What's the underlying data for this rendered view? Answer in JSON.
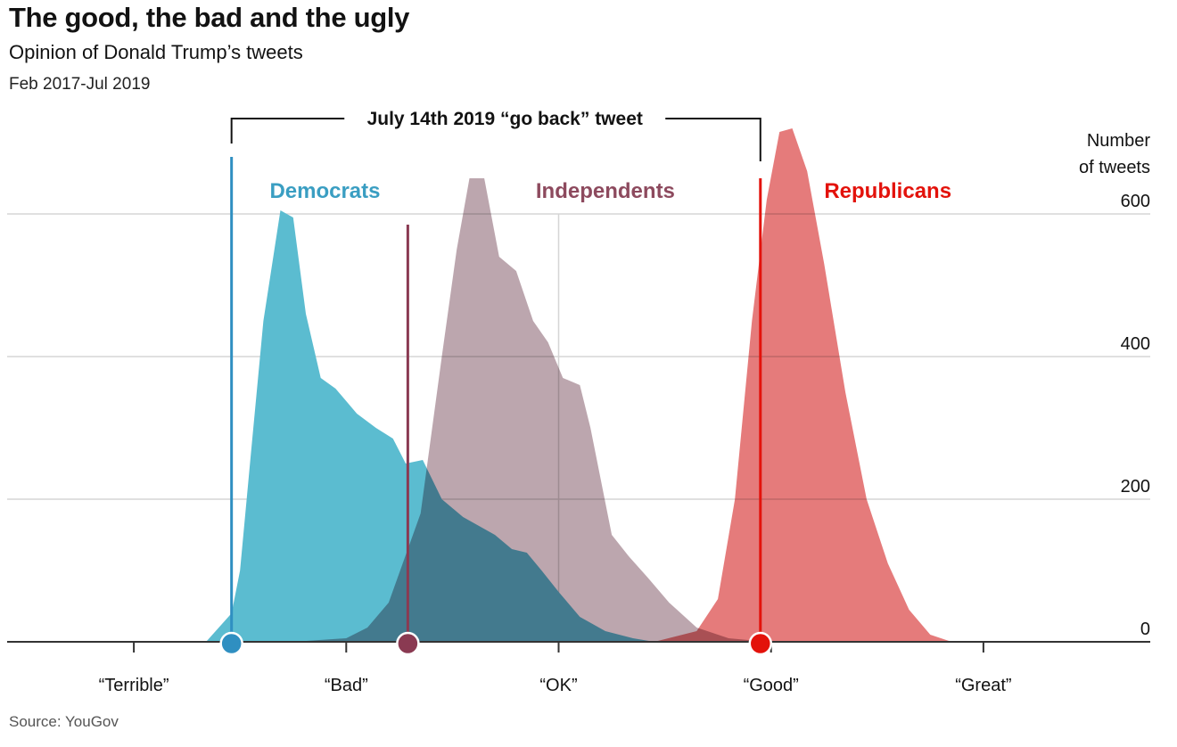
{
  "header": {
    "title": "The good, the bad and the ugly",
    "subtitle": "Opinion of Donald Trump’s tweets",
    "period": "Feb 2017-Jul 2019"
  },
  "source": "Source: YouGov",
  "chart_data": {
    "type": "area",
    "title": "The good, the bad and the ugly",
    "subtitle": "Opinion of Donald Trump’s tweets",
    "ylabel_lines": [
      "Number",
      "of tweets"
    ],
    "ylim": [
      0,
      750
    ],
    "yticks": [
      0,
      200,
      400,
      600
    ],
    "xlim": [
      0,
      5
    ],
    "x_categories": [
      {
        "label": "“Terrible”",
        "x": 0.5
      },
      {
        "label": "“Bad”",
        "x": 1.5
      },
      {
        "label": "“OK”",
        "x": 2.5
      },
      {
        "label": "“Good”",
        "x": 3.5
      },
      {
        "label": "“Great”",
        "x": 4.5
      }
    ],
    "grid": true,
    "annotation": {
      "label": "July 14th 2019 “go back” tweet",
      "from_series": "Democrats",
      "to_series": "Republicans"
    },
    "series": [
      {
        "name": "Democrats",
        "color": "#5bbcd0",
        "label_color": "#3a9ec2",
        "marker_color": "#2f8fc1",
        "go_back_tweet_x": 0.96,
        "go_back_tweet_y": 680,
        "x": [
          0.84,
          0.96,
          1.0,
          1.05,
          1.11,
          1.19,
          1.25,
          1.31,
          1.38,
          1.45,
          1.55,
          1.64,
          1.72,
          1.78,
          1.86,
          1.95,
          2.05,
          2.2,
          2.28,
          2.35,
          2.42,
          2.5,
          2.6,
          2.72,
          2.85,
          2.95
        ],
        "y": [
          0,
          40,
          100,
          260,
          450,
          605,
          595,
          460,
          370,
          355,
          320,
          300,
          285,
          250,
          255,
          200,
          175,
          150,
          130,
          125,
          100,
          70,
          35,
          15,
          5,
          0
        ]
      },
      {
        "name": "Independents",
        "color": "#b59ca5",
        "label_color": "#8d4a5e",
        "marker_color": "#8a3a52",
        "go_back_tweet_x": 1.79,
        "go_back_tweet_y": 585,
        "x": [
          1.25,
          1.5,
          1.6,
          1.7,
          1.85,
          1.95,
          2.02,
          2.08,
          2.15,
          2.22,
          2.3,
          2.38,
          2.45,
          2.52,
          2.6,
          2.65,
          2.75,
          2.83,
          2.92,
          3.02,
          3.15,
          3.3,
          3.45,
          3.6
        ],
        "y": [
          0,
          5,
          20,
          55,
          180,
          400,
          550,
          650,
          650,
          540,
          520,
          450,
          420,
          370,
          360,
          300,
          150,
          120,
          90,
          55,
          20,
          5,
          1,
          0
        ]
      },
      {
        "name": "Republicans",
        "color": "#e57b7b",
        "label_color": "#e3120b",
        "marker_color": "#e3120b",
        "go_back_tweet_x": 3.45,
        "go_back_tweet_y": 650,
        "x": [
          2.95,
          3.15,
          3.25,
          3.33,
          3.41,
          3.48,
          3.54,
          3.6,
          3.67,
          3.75,
          3.85,
          3.95,
          4.05,
          4.15,
          4.25,
          4.35
        ],
        "y": [
          0,
          15,
          60,
          200,
          450,
          620,
          715,
          720,
          660,
          530,
          350,
          200,
          110,
          45,
          10,
          0
        ]
      }
    ]
  }
}
